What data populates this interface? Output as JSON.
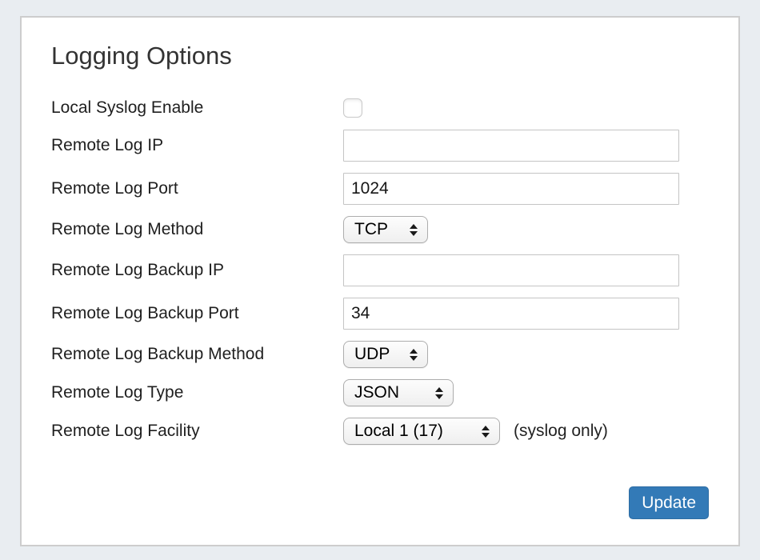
{
  "page": {
    "title": "Logging Options"
  },
  "form": {
    "rows": [
      {
        "label": "Local Syslog Enable",
        "type": "checkbox",
        "checked": false
      },
      {
        "label": "Remote Log IP",
        "type": "text",
        "value": ""
      },
      {
        "label": "Remote Log Port",
        "type": "text",
        "value": "1024"
      },
      {
        "label": "Remote Log Method",
        "type": "select",
        "value": "TCP"
      },
      {
        "label": "Remote Log Backup IP",
        "type": "text",
        "value": ""
      },
      {
        "label": "Remote Log Backup Port",
        "type": "text",
        "value": "34"
      },
      {
        "label": "Remote Log Backup Method",
        "type": "select",
        "value": "UDP"
      },
      {
        "label": "Remote Log Type",
        "type": "select",
        "value": "JSON"
      },
      {
        "label": "Remote Log Facility",
        "type": "select",
        "value": "Local 1 (17)",
        "note": "(syslog only)"
      }
    ],
    "update_button_label": "Update"
  },
  "icons": {
    "select_arrows": "up-down-arrows"
  },
  "colors": {
    "page_background": "#e9edf1",
    "card_background": "#ffffff",
    "card_border": "#cdcdcd",
    "button_background": "#337ab7",
    "button_text": "#ffffff"
  }
}
